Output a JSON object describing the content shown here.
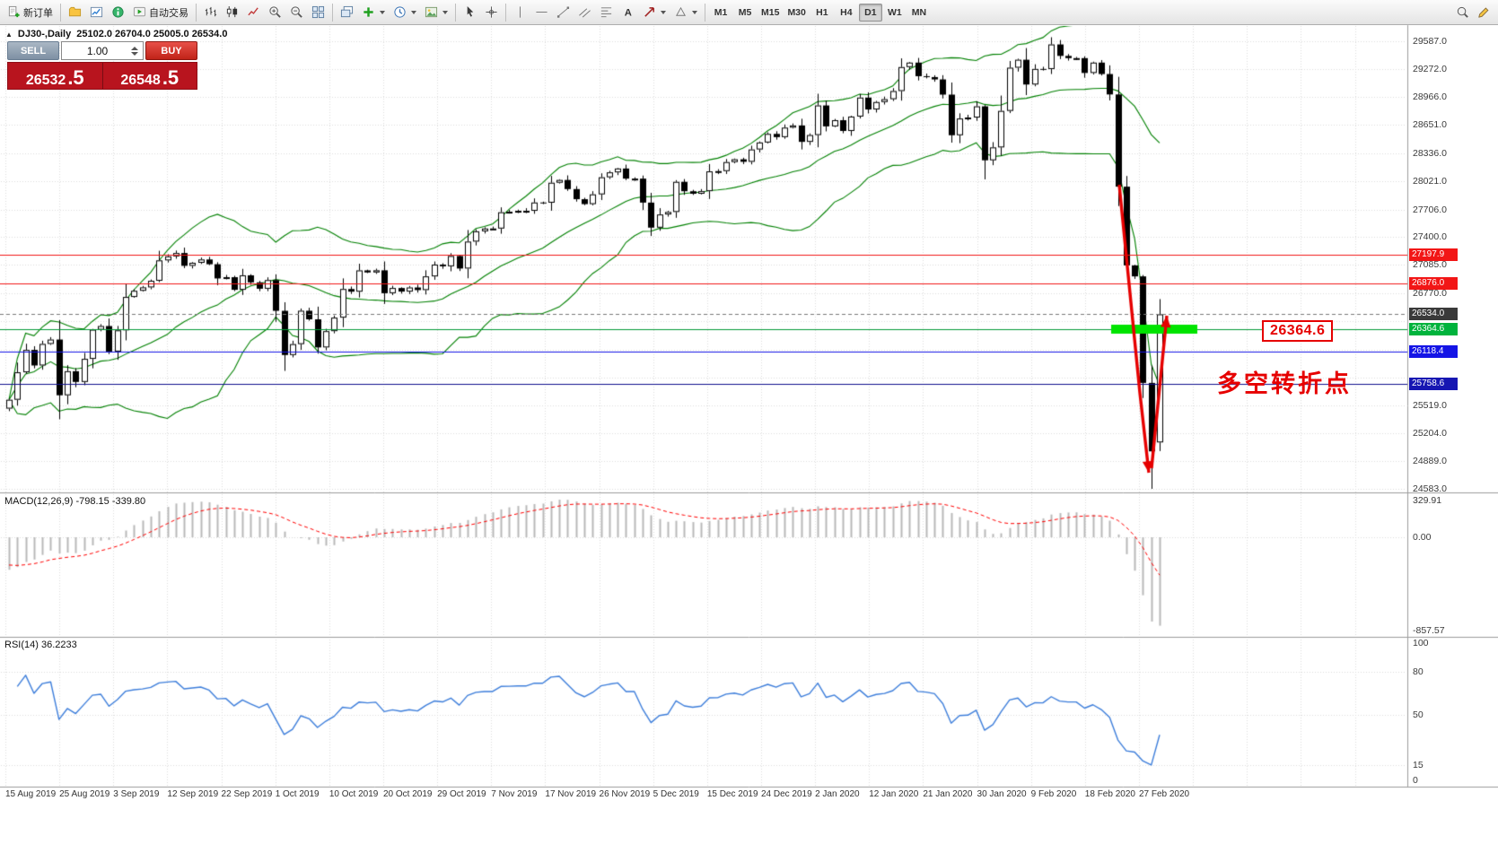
{
  "toolbar": {
    "new_order_label": "新订单",
    "autotrading_label": "自动交易",
    "timeframes": [
      "M1",
      "M5",
      "M15",
      "M30",
      "H1",
      "H4",
      "D1",
      "W1",
      "MN"
    ],
    "active_timeframe": "D1"
  },
  "chart": {
    "title": "DJ30-,Daily",
    "ohlc": "25102.0 26704.0 25005.0 26534.0"
  },
  "trade_widget": {
    "sell_label": "SELL",
    "buy_label": "BUY",
    "volume": "1.00",
    "bid": 26532.5,
    "ask": 26548.5,
    "bid_main": "26532",
    "bid_pip": ".5",
    "ask_main": "26548",
    "ask_pip": ".5"
  },
  "price_axis": {
    "labels": [
      {
        "text": "29587.0",
        "value": 29587.0
      },
      {
        "text": "29272.0",
        "value": 29272.0
      },
      {
        "text": "28966.0",
        "value": 28966.0
      },
      {
        "text": "28651.0",
        "value": 28651.0
      },
      {
        "text": "28336.0",
        "value": 28336.0
      },
      {
        "text": "28021.0",
        "value": 28021.0
      },
      {
        "text": "27706.0",
        "value": 27706.0
      },
      {
        "text": "27400.0",
        "value": 27400.0
      },
      {
        "text": "27085.0",
        "value": 27085.0
      },
      {
        "text": "26770.0",
        "value": 26770.0
      },
      {
        "text": "25519.0",
        "value": 25519.0
      },
      {
        "text": "25204.0",
        "value": 25204.0
      },
      {
        "text": "24889.0",
        "value": 24889.0
      },
      {
        "text": "24583.0",
        "value": 24583.0
      }
    ],
    "tags": [
      {
        "text": "27197.9",
        "value": 27197.9,
        "bg": "#f21616"
      },
      {
        "text": "26876.0",
        "value": 26876.0,
        "bg": "#f21616"
      },
      {
        "text": "26534.0",
        "value": 26534.0,
        "bg": "#3a3a3a"
      },
      {
        "text": "26364.6",
        "value": 26364.6,
        "bg": "#00b33c"
      },
      {
        "text": "26118.4",
        "value": 26118.4,
        "bg": "#1414e6"
      },
      {
        "text": "25758.6",
        "value": 25758.6,
        "bg": "#1616b2"
      }
    ]
  },
  "levels": [
    {
      "value": 27197.9,
      "color": "#f21616",
      "style": "solid"
    },
    {
      "value": 26876.0,
      "color": "#f21616",
      "style": "solid"
    },
    {
      "value": 26534.0,
      "color": "#787878",
      "style": "dash"
    },
    {
      "value": 26364.6,
      "color": "#009933",
      "style": "solid"
    },
    {
      "value": 26118.4,
      "color": "#1414e6",
      "style": "solid"
    },
    {
      "value": 25758.6,
      "color": "#10108e",
      "style": "solid"
    }
  ],
  "annotations": {
    "price_callout": "26364.6",
    "turning_point": "多空转折点"
  },
  "macd": {
    "label": "MACD(12,26,9) -798.15 -339.80",
    "scale": [
      {
        "text": "329.91",
        "value": 329.91
      },
      {
        "text": "0.00",
        "value": 0
      },
      {
        "text": "-857.57",
        "value": -857.57
      }
    ]
  },
  "rsi": {
    "label": "RSI(14) 36.2233",
    "scale": [
      {
        "text": "100",
        "value": 100
      },
      {
        "text": "80",
        "value": 80
      },
      {
        "text": "50",
        "value": 50
      },
      {
        "text": "15",
        "value": 15
      },
      {
        "text": "0",
        "value": 0
      }
    ],
    "levels": [
      80,
      50,
      15
    ]
  },
  "time_axis": [
    "15 Aug 2019",
    "25 Aug 2019",
    "3 Sep 2019",
    "12 Sep 2019",
    "22 Sep 2019",
    "1 Oct 2019",
    "10 Oct 2019",
    "20 Oct 2019",
    "29 Oct 2019",
    "7 Nov 2019",
    "17 Nov 2019",
    "26 Nov 2019",
    "5 Dec 2019",
    "15 Dec 2019",
    "24 Dec 2019",
    "2 Jan 2020",
    "12 Jan 2020",
    "21 Jan 2020",
    "30 Jan 2020",
    "9 Feb 2020",
    "18 Feb 2020",
    "27 Feb 2020"
  ],
  "chart_data": {
    "type": "candlestick",
    "symbol": "DJ30-",
    "timeframe": "Daily",
    "current_bar": {
      "open": 25102.0,
      "high": 26704.0,
      "low": 25005.0,
      "close": 26534.0
    },
    "price_range_visible": [
      24583.0,
      29747.0
    ],
    "first_open": 25480,
    "closes": [
      25579,
      25886,
      26136,
      25962,
      26203,
      26252,
      25629,
      25898,
      25778,
      26036,
      26362,
      26403,
      26118,
      26355,
      26728,
      26797,
      26835,
      26909,
      27137,
      27182,
      27219,
      27076,
      27110,
      27147,
      27094,
      26935,
      26949,
      26808,
      26970,
      26891,
      26820,
      26917,
      26573,
      26079,
      26201,
      26574,
      26478,
      26164,
      26346,
      26497,
      26817,
      26787,
      27025,
      27002,
      27026,
      26770,
      26828,
      26788,
      26834,
      26805,
      26958,
      27090,
      27071,
      27186,
      27046,
      27347,
      27462,
      27493,
      27493,
      27675,
      27681,
      27691,
      27691,
      27784,
      27782,
      28005,
      28036,
      27934,
      27821,
      27766,
      27875,
      28066,
      28121,
      28164,
      28051,
      28051,
      27783,
      27503,
      27650,
      27678,
      28015,
      27910,
      27882,
      27911,
      28132,
      28135,
      28236,
      28267,
      28239,
      28377,
      28455,
      28551,
      28515,
      28621,
      28645,
      28462,
      28538,
      28869,
      28635,
      28704,
      28584,
      28745,
      28957,
      28824,
      28907,
      28939,
      29030,
      29298,
      29348,
      29196,
      29186,
      29160,
      28990,
      28536,
      28723,
      28734,
      28859,
      28256,
      28400,
      28808,
      29291,
      29380,
      29103,
      29277,
      29276,
      29551,
      29423,
      29398,
      29398,
      29232,
      29348,
      29220,
      28992,
      27961,
      27081,
      26958,
      25767,
      25002
    ],
    "indicators": [
      {
        "name": "Bollinger Bands",
        "period": 20,
        "deviation": 2,
        "color": "#008000"
      },
      {
        "name": "MACD",
        "fast": 12,
        "slow": 26,
        "signal": 9,
        "value": -798.15,
        "signal_value": -339.8
      },
      {
        "name": "RSI",
        "period": 14,
        "value": 36.2233
      }
    ],
    "highlight_zone_price": 26364.6
  }
}
